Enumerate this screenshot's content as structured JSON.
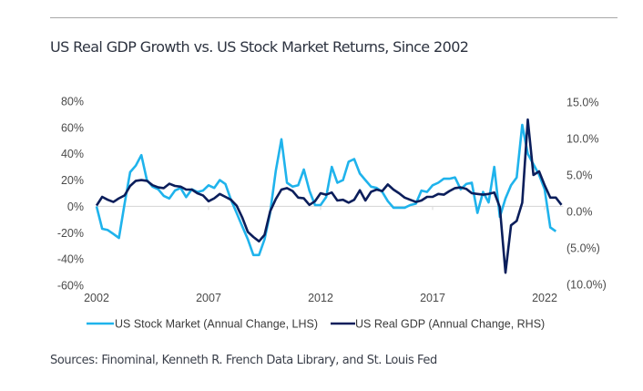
{
  "header": {
    "title": "US Real GDP Growth vs. US Stock Market Returns, Since 2002"
  },
  "footer": {
    "sources": "Sources: Finominal, Kenneth R. French Data Library, and St. Louis Fed"
  },
  "colors": {
    "stock": "#1fb3ec",
    "gdp": "#0b1e5b",
    "zero_line": "#d9d9d9",
    "rule": "#a8a8a8"
  },
  "chart_data": {
    "type": "line",
    "title": "US Real GDP Growth vs. US Stock Market Returns, Since 2002",
    "xlabel": "",
    "ylabel_left": "US Stock Market (Annual Change, %)",
    "ylabel_right": "US Real GDP (Annual Change, %)",
    "frequency": "quarterly",
    "x_start": 2002.0,
    "x_step": 0.25,
    "xlim": [
      2002,
      2022.75
    ],
    "x_ticks": [
      2002,
      2007,
      2012,
      2017,
      2022
    ],
    "x_tick_labels": [
      "2002",
      "2007",
      "2012",
      "2017",
      "2022"
    ],
    "ylim_left": [
      -60,
      80
    ],
    "y_ticks_left": [
      80,
      60,
      40,
      20,
      0,
      -20,
      -40,
      -60
    ],
    "y_tick_labels_left": [
      "80%",
      "60%",
      "40%",
      "20%",
      "0%",
      "-20%",
      "-40%",
      "-60%"
    ],
    "ylim_right": [
      -10,
      15
    ],
    "y_ticks_right": [
      15,
      10,
      5,
      0,
      -5,
      -10
    ],
    "y_tick_labels_right": [
      "15.0%",
      "10.0%",
      "5.0%",
      "0.0%",
      "(5.0%)",
      "(10.0%)"
    ],
    "grid": false,
    "zero_line": true,
    "legend_position": "bottom",
    "series": [
      {
        "name": "US Stock Market (Annual Change, LHS)",
        "axis": "left",
        "values": [
          0,
          -17,
          -18,
          -21,
          -24,
          2,
          26,
          31,
          39,
          20,
          15,
          13,
          8,
          6,
          12,
          14,
          7,
          13,
          11,
          12,
          16,
          14,
          20,
          17,
          5,
          -5,
          -15,
          -25,
          -37,
          -37,
          -25,
          -5,
          27,
          51,
          18,
          15,
          16,
          28,
          12,
          1,
          1,
          7,
          30,
          18,
          20,
          34,
          36,
          25,
          20,
          15,
          14,
          11,
          4,
          -1,
          -1,
          -1,
          1,
          2,
          12,
          11,
          16,
          18,
          21,
          21,
          22,
          13,
          17,
          18,
          -5,
          11,
          3,
          30,
          -8,
          6,
          16,
          22,
          62,
          40,
          32,
          24,
          13,
          -16,
          -19
        ]
      },
      {
        "name": "US Real GDP (Annual Change, RHS)",
        "axis": "right",
        "values": [
          0.8,
          2.0,
          1.6,
          1.3,
          1.8,
          2.2,
          3.5,
          4.2,
          4.3,
          4.2,
          3.6,
          3.3,
          3.2,
          3.8,
          3.5,
          3.4,
          3.0,
          3.0,
          2.5,
          2.2,
          1.4,
          1.8,
          2.4,
          2.0,
          1.6,
          0.8,
          -0.8,
          -2.8,
          -3.5,
          -4.1,
          -3.2,
          0.0,
          1.7,
          3.0,
          3.2,
          2.8,
          1.9,
          1.8,
          0.9,
          1.4,
          2.5,
          2.3,
          2.6,
          1.5,
          1.6,
          1.2,
          1.6,
          2.9,
          1.5,
          2.7,
          3.0,
          2.8,
          3.7,
          3.0,
          2.5,
          1.9,
          1.6,
          1.3,
          1.5,
          2.0,
          2.0,
          2.4,
          2.3,
          2.8,
          3.2,
          3.3,
          3.1,
          2.5,
          2.4,
          2.3,
          2.4,
          2.6,
          0.6,
          -8.4,
          -1.9,
          -1.3,
          1.2,
          12.6,
          5.0,
          5.5,
          3.6,
          1.9,
          1.9,
          0.9
        ]
      }
    ]
  }
}
